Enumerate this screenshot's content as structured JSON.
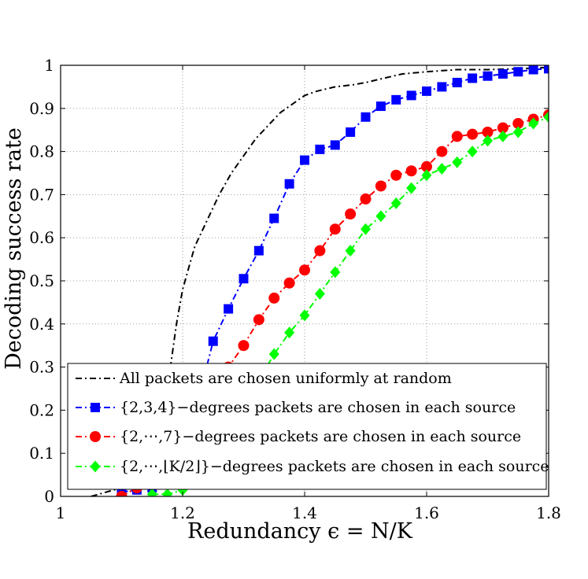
{
  "chart_data": {
    "type": "line",
    "xlabel": "Redundancy ϵ = N/K",
    "ylabel": "Decoding success rate",
    "xlim": [
      1,
      1.8
    ],
    "ylim": [
      0,
      1
    ],
    "xticks": [
      "1",
      "1.2",
      "1.4",
      "1.6",
      "1.8"
    ],
    "yticks": [
      "0",
      "0.1",
      "0.2",
      "0.3",
      "0.4",
      "0.5",
      "0.6",
      "0.7",
      "0.8",
      "0.9",
      "1"
    ],
    "grid": true,
    "legend_position": "bottom-right",
    "series": [
      {
        "name": "All packets are chosen uniformly at random",
        "color": "#000000",
        "line_style": "dash-dot",
        "marker": "none",
        "x": [
          1.05,
          1.1,
          1.14,
          1.16,
          1.17,
          1.18,
          1.19,
          1.2,
          1.21,
          1.22,
          1.24,
          1.26,
          1.28,
          1.3,
          1.32,
          1.34,
          1.36,
          1.38,
          1.4,
          1.42,
          1.45,
          1.48,
          1.5,
          1.53,
          1.56,
          1.6,
          1.65,
          1.7,
          1.75,
          1.8
        ],
        "y": [
          0.0,
          0.02,
          0.05,
          0.1,
          0.2,
          0.3,
          0.4,
          0.48,
          0.53,
          0.58,
          0.64,
          0.7,
          0.75,
          0.79,
          0.83,
          0.86,
          0.89,
          0.91,
          0.93,
          0.94,
          0.95,
          0.955,
          0.96,
          0.97,
          0.98,
          0.985,
          0.99,
          0.99,
          0.992,
          0.995
        ]
      },
      {
        "name": "{2,3,4}−degrees packets are chosen in each source",
        "color": "#0000ff",
        "line_style": "dash-dot",
        "marker": "square",
        "x": [
          1.1,
          1.125,
          1.15,
          1.175,
          1.2,
          1.225,
          1.25,
          1.275,
          1.3,
          1.325,
          1.35,
          1.375,
          1.4,
          1.425,
          1.45,
          1.475,
          1.5,
          1.525,
          1.55,
          1.575,
          1.6,
          1.625,
          1.65,
          1.675,
          1.7,
          1.725,
          1.75,
          1.775,
          1.8
        ],
        "y": [
          0.01,
          0.015,
          0.02,
          0.04,
          0.1,
          0.22,
          0.36,
          0.435,
          0.505,
          0.57,
          0.645,
          0.725,
          0.78,
          0.805,
          0.815,
          0.845,
          0.88,
          0.905,
          0.92,
          0.93,
          0.94,
          0.95,
          0.96,
          0.97,
          0.975,
          0.98,
          0.985,
          0.99,
          0.992
        ]
      },
      {
        "name": "{2,⋯,7}−degrees packets are chosen in each source",
        "color": "#ff0000",
        "line_style": "dash-dot",
        "marker": "circle",
        "x": [
          1.1,
          1.125,
          1.15,
          1.175,
          1.2,
          1.225,
          1.25,
          1.275,
          1.3,
          1.325,
          1.35,
          1.375,
          1.4,
          1.425,
          1.45,
          1.475,
          1.5,
          1.525,
          1.55,
          1.575,
          1.6,
          1.625,
          1.65,
          1.675,
          1.7,
          1.725,
          1.75,
          1.775,
          1.8
        ],
        "y": [
          0.0,
          0.02,
          0.03,
          0.07,
          0.13,
          0.19,
          0.25,
          0.3,
          0.35,
          0.41,
          0.46,
          0.495,
          0.525,
          0.57,
          0.62,
          0.655,
          0.69,
          0.72,
          0.745,
          0.755,
          0.765,
          0.8,
          0.835,
          0.84,
          0.845,
          0.855,
          0.865,
          0.875,
          0.885
        ]
      },
      {
        "name": "{2,⋯,⌊K/2⌋}−degrees packets are chosen in each source",
        "color": "#00ff00",
        "line_style": "dash-dot",
        "marker": "diamond",
        "x": [
          1.15,
          1.175,
          1.2,
          1.225,
          1.25,
          1.275,
          1.3,
          1.325,
          1.35,
          1.375,
          1.4,
          1.425,
          1.45,
          1.475,
          1.5,
          1.525,
          1.55,
          1.575,
          1.6,
          1.625,
          1.65,
          1.675,
          1.7,
          1.725,
          1.75,
          1.775,
          1.8
        ],
        "y": [
          0.005,
          0.005,
          0.015,
          0.04,
          0.08,
          0.15,
          0.21,
          0.27,
          0.33,
          0.38,
          0.42,
          0.47,
          0.52,
          0.57,
          0.62,
          0.65,
          0.68,
          0.715,
          0.745,
          0.76,
          0.775,
          0.8,
          0.825,
          0.835,
          0.845,
          0.865,
          0.88
        ]
      }
    ]
  }
}
